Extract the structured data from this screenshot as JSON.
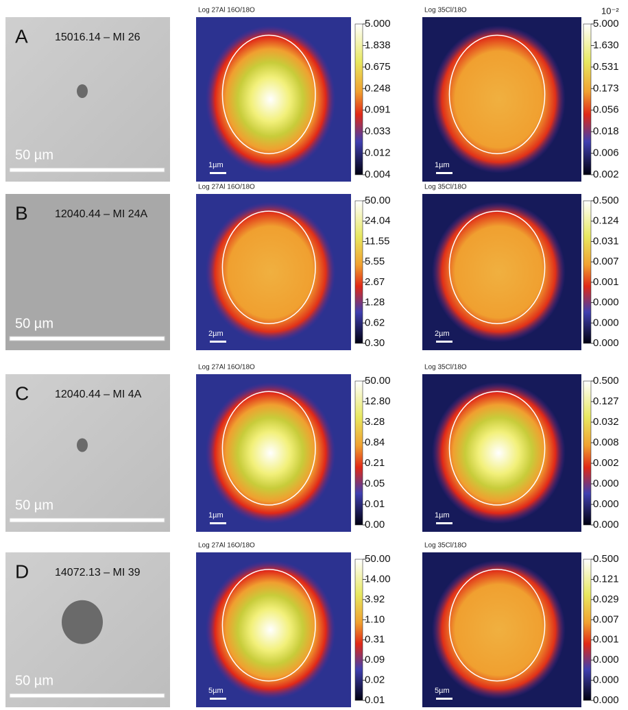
{
  "panels": [
    {
      "letter": "A",
      "sample": "15016.14 – MI 26",
      "scale_bar": "50 µm",
      "maps": [
        {
          "title": "Log 27Al 16O/18O",
          "scale_bar": "1µm",
          "ticks": [
            "5.000",
            "1.838",
            "0.675",
            "0.248",
            "0.091",
            "0.033",
            "0.012",
            "0.004"
          ]
        },
        {
          "title": "Log 35Cl/18O",
          "exponent": "10⁻²",
          "scale_bar": "1µm",
          "ticks": [
            "5.000",
            "1.630",
            "0.531",
            "0.173",
            "0.056",
            "0.018",
            "0.006",
            "0.002"
          ]
        }
      ]
    },
    {
      "letter": "B",
      "sample": "12040.44 – MI 24A",
      "scale_bar": "50 µm",
      "maps": [
        {
          "title": "Log 27Al 16O/18O",
          "scale_bar": "2µm",
          "ticks": [
            "50.00",
            "24.04",
            "11.55",
            "5.55",
            "2.67",
            "1.28",
            "0.62",
            "0.30"
          ]
        },
        {
          "title": "Log 35Cl/18O",
          "scale_bar": "2µm",
          "ticks": [
            "0.500",
            "0.124",
            "0.031",
            "0.007",
            "0.001",
            "0.000",
            "0.000",
            "0.000"
          ]
        }
      ]
    },
    {
      "letter": "C",
      "sample": "12040.44 – MI 4A",
      "scale_bar": "50 µm",
      "maps": [
        {
          "title": "Log 27Al 16O/18O",
          "scale_bar": "1µm",
          "ticks": [
            "50.00",
            "12.80",
            "3.28",
            "0.84",
            "0.21",
            "0.05",
            "0.01",
            "0.00"
          ]
        },
        {
          "title": "Log 35Cl/18O",
          "scale_bar": "1µm",
          "ticks": [
            "0.500",
            "0.127",
            "0.032",
            "0.008",
            "0.002",
            "0.000",
            "0.000",
            "0.000"
          ]
        }
      ]
    },
    {
      "letter": "D",
      "sample": "14072.13 – MI 39",
      "scale_bar": "50 µm",
      "maps": [
        {
          "title": "Log 27Al 16O/18O",
          "scale_bar": "5µm",
          "ticks": [
            "50.00",
            "14.00",
            "3.92",
            "1.10",
            "0.31",
            "0.09",
            "0.02",
            "0.01"
          ]
        },
        {
          "title": "Log 35Cl/18O",
          "scale_bar": "5µm",
          "ticks": [
            "0.500",
            "0.121",
            "0.029",
            "0.007",
            "0.001",
            "0.000",
            "0.000",
            "0.000"
          ]
        }
      ]
    }
  ]
}
